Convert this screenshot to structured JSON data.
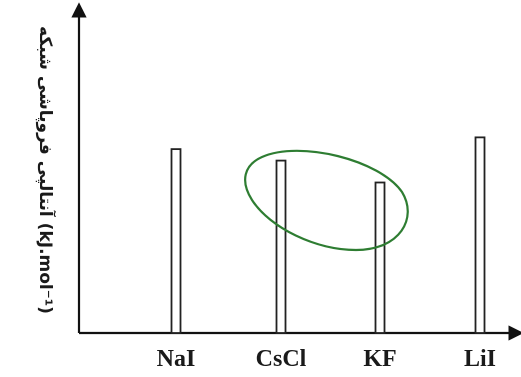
{
  "chart_data": {
    "type": "bar",
    "title": "",
    "xlabel": "",
    "ylabel": "(kJ.mol⁻¹) آنتالپی فروپاشی شبکه",
    "categories": [
      "NaI",
      "CsCl",
      "KF",
      "LiI"
    ],
    "values": [
      705,
      661,
      577,
      750
    ],
    "ylim": [
      0,
      1200
    ],
    "grid": false,
    "legend": "none",
    "colors": {
      "bar_fill": "#ffffff",
      "bar_stroke": "#222222",
      "axis": "#111111",
      "annotation": "#2e7d32"
    },
    "annotations": [
      {
        "type": "hand-drawn-ellipse",
        "encloses": [
          "CsCl",
          "KF"
        ]
      }
    ]
  }
}
